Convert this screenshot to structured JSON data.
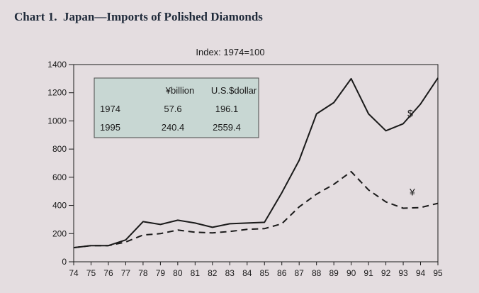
{
  "title": "Chart 1.  Japan—Imports of Polished Diamonds",
  "chart_data": {
    "type": "line",
    "subtitle": "Index: 1974=100",
    "x": [
      "74",
      "75",
      "76",
      "77",
      "78",
      "79",
      "80",
      "81",
      "82",
      "83",
      "84",
      "85",
      "86",
      "87",
      "88",
      "89",
      "90",
      "91",
      "92",
      "93",
      "94",
      "95"
    ],
    "ylim": [
      0,
      1400
    ],
    "yticks": [
      0,
      200,
      400,
      600,
      800,
      1000,
      1200,
      1400
    ],
    "grid": false,
    "series": [
      {
        "name": "$",
        "style": "solid",
        "color": "#1a1a1a",
        "values": [
          100,
          115,
          115,
          155,
          285,
          265,
          295,
          275,
          245,
          270,
          275,
          280,
          490,
          720,
          1050,
          1130,
          1300,
          1050,
          930,
          980,
          1120,
          1305
        ]
      },
      {
        "name": "¥",
        "style": "dashed",
        "color": "#1a1a1a",
        "values": [
          100,
          115,
          115,
          140,
          190,
          200,
          225,
          210,
          205,
          215,
          230,
          235,
          270,
          390,
          480,
          550,
          640,
          510,
          425,
          380,
          385,
          415
        ]
      }
    ],
    "inset_table": {
      "headers": [
        "",
        "¥billion",
        "U.S.$dollar"
      ],
      "rows": [
        [
          "1974",
          "57.6",
          "196.1"
        ],
        [
          "1995",
          "240.4",
          "2559.4"
        ]
      ]
    }
  },
  "colors": {
    "page_background": "#e4dde0",
    "table_fill": "#c8d7d3",
    "line": "#1a1a1a",
    "title": "#1f2a3a"
  }
}
